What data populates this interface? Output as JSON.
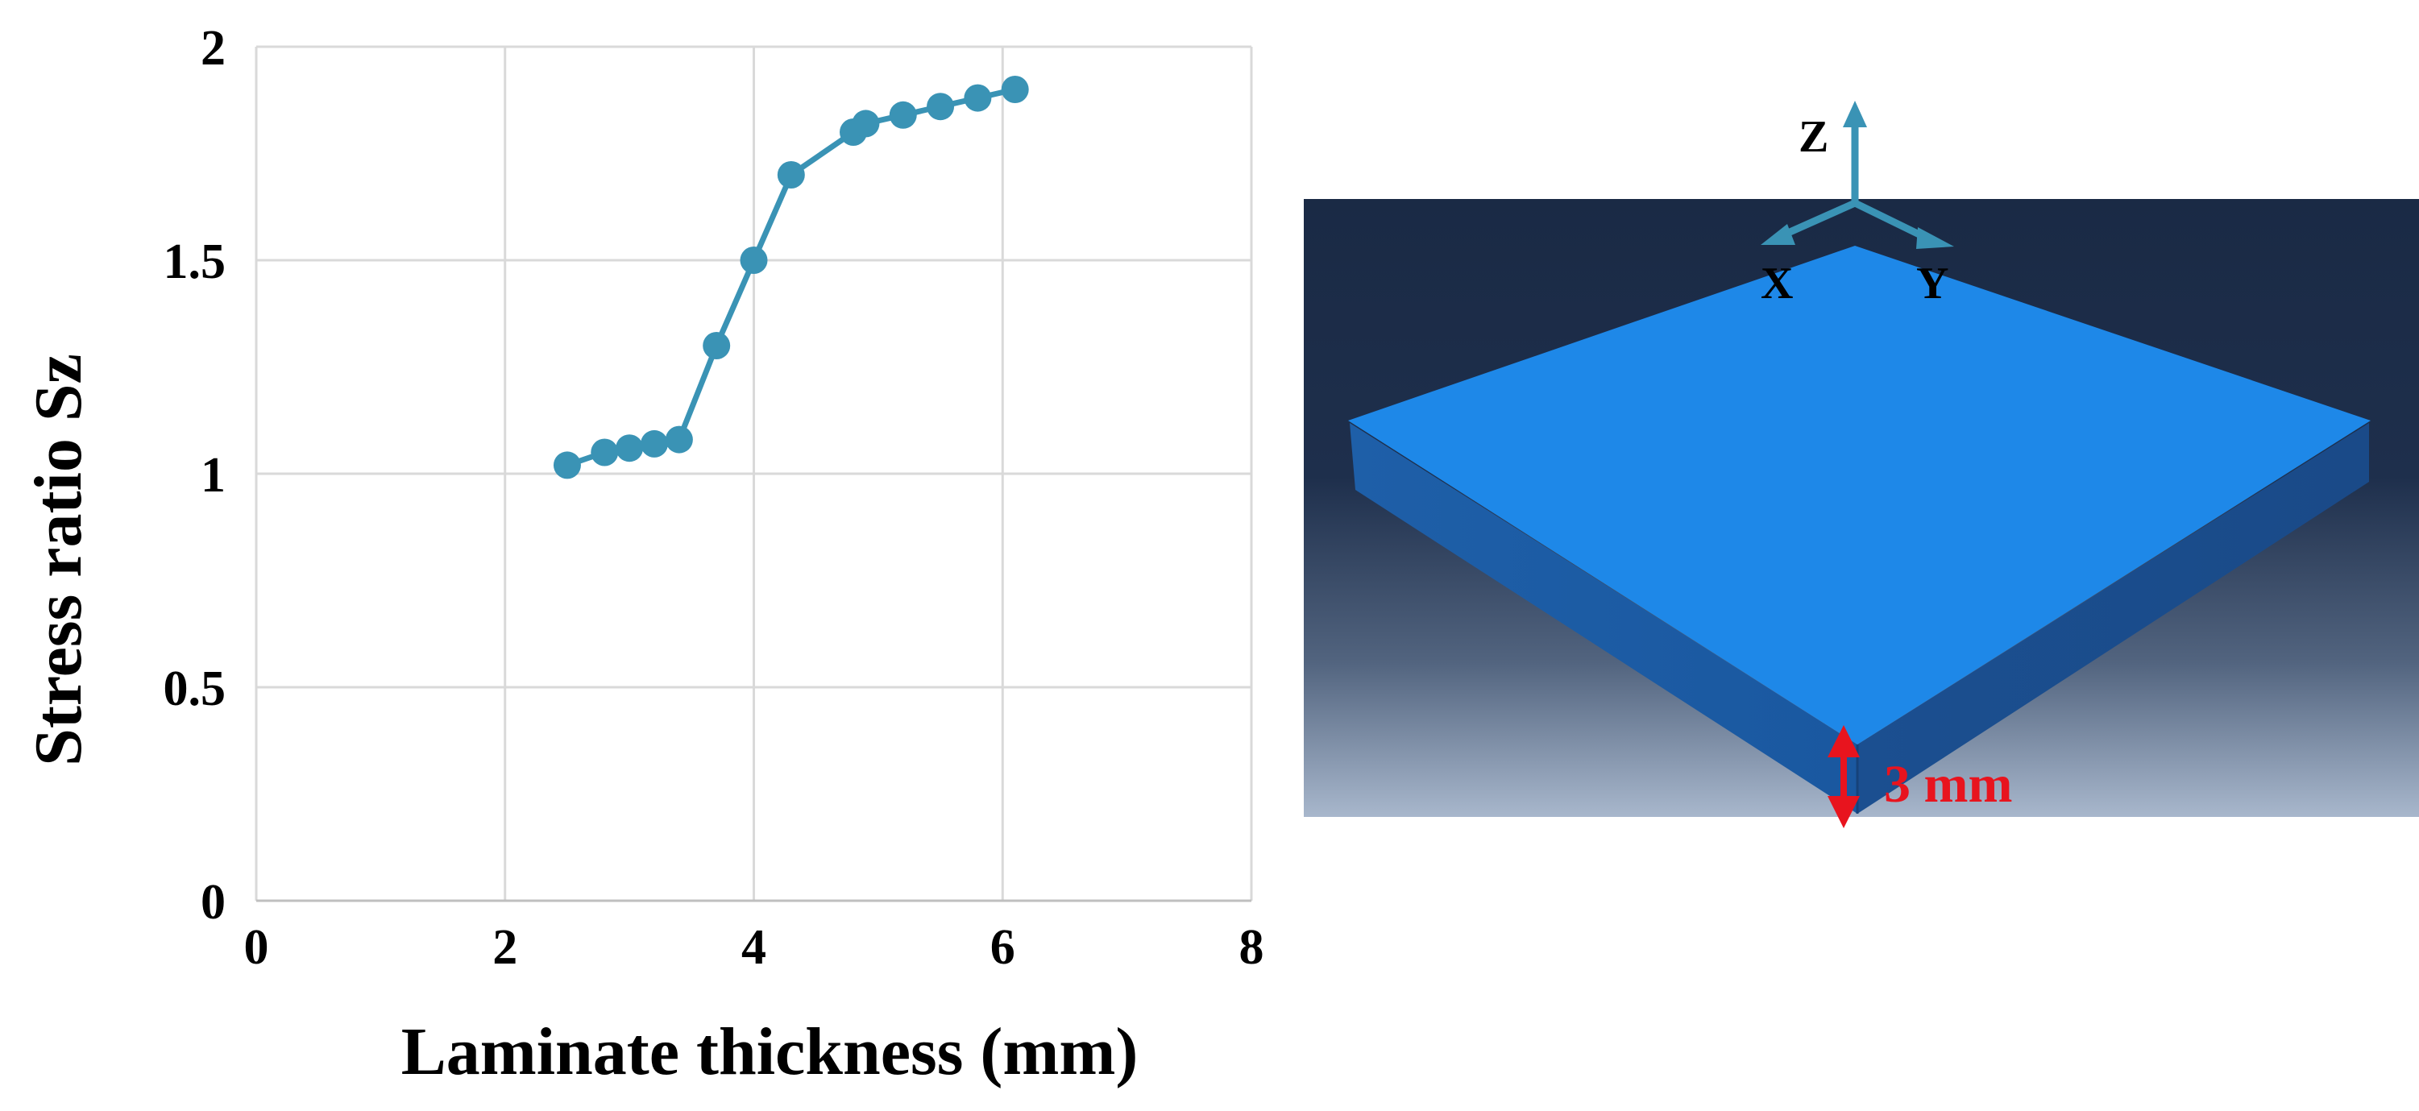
{
  "chart_data": {
    "type": "line",
    "title": "",
    "xlabel": "Laminate thickness (mm)",
    "ylabel": "Stress ratio Sz",
    "xlim": [
      0,
      8
    ],
    "ylim": [
      0,
      2
    ],
    "x_ticks": [
      "0",
      "2",
      "4",
      "6",
      "8"
    ],
    "y_ticks": [
      "0",
      "0.5",
      "1",
      "1.5",
      "2"
    ],
    "grid": true,
    "legend": "none",
    "series": [
      {
        "color": "#3a93b5",
        "marker": "circle",
        "x": [
          2.5,
          2.8,
          3.0,
          3.2,
          3.4,
          3.7,
          4.0,
          4.3,
          4.8,
          4.9,
          5.2,
          5.5,
          5.8,
          6.1
        ],
        "y": [
          1.02,
          1.05,
          1.06,
          1.07,
          1.08,
          1.3,
          1.5,
          1.7,
          1.8,
          1.82,
          1.84,
          1.86,
          1.88,
          1.9
        ]
      }
    ]
  },
  "model": {
    "axis_z": "Z",
    "axis_x": "X",
    "axis_y": "Y",
    "thickness_label": "3 mm",
    "plate_color": "#1e88e8",
    "triad_color": "#3a93b5",
    "dimension_color": "#e8141e"
  }
}
